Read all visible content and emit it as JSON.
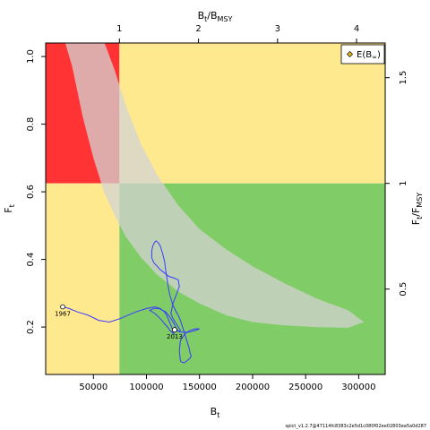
{
  "chart_data": {
    "type": "line",
    "x_axis": {
      "label": "B",
      "label_sub": "t",
      "range": [
        5000,
        325000
      ],
      "ticks": [
        50000,
        100000,
        150000,
        200000,
        250000,
        300000
      ],
      "tick_labels": [
        "50000",
        "100000",
        "150000",
        "200000",
        "250000",
        "300000"
      ]
    },
    "y_axis": {
      "label": "F",
      "label_sub": "t",
      "range": [
        0.06,
        1.04
      ],
      "ticks": [
        0.2,
        0.4,
        0.6,
        0.8,
        1.0
      ],
      "tick_labels": [
        "0.2",
        "0.4",
        "0.6",
        "0.8",
        "1.0"
      ]
    },
    "top_axis": {
      "label": "B",
      "label_sub": "t",
      "label_mid": "/B",
      "label_sub2": "MSY",
      "bmsy": 74500,
      "ticks": [
        1,
        2,
        3,
        4
      ],
      "tick_labels": [
        "1",
        "2",
        "3",
        "4"
      ]
    },
    "right_axis": {
      "label": "F",
      "label_sub": "t",
      "label_mid": "/F",
      "label_sub2": "MSY",
      "fmsy": 0.625,
      "ticks": [
        0.5,
        1,
        1.5
      ],
      "tick_labels": [
        "0.5",
        "1",
        "1.5"
      ]
    },
    "reference_points": {
      "bmsy": 74500,
      "fmsy": 0.625
    },
    "zones": [
      {
        "name": "overfished-overfishing",
        "color": "#ff3333"
      },
      {
        "name": "overfishing-or-overfished",
        "color": "#ffe98f"
      },
      {
        "name": "healthy",
        "color": "#80cc66"
      }
    ],
    "uncertainty_region": {
      "color": "#d3d3d3",
      "outer_x": [
        23500,
        30000,
        40000,
        50000,
        60000,
        70000,
        80000,
        95000,
        110000,
        130000,
        150000,
        175000,
        200000,
        230000,
        260000,
        290000,
        305000
      ],
      "outer_y": [
        1.04,
        0.97,
        0.82,
        0.7,
        0.6,
        0.53,
        0.47,
        0.405,
        0.355,
        0.305,
        0.27,
        0.235,
        0.215,
        0.205,
        0.2,
        0.198,
        0.215
      ],
      "inner_x": [
        60500,
        70000,
        80000,
        95000,
        110000,
        130000,
        150000,
        175000,
        200000,
        230000,
        260000,
        290000,
        305000
      ],
      "inner_y": [
        1.04,
        0.96,
        0.86,
        0.74,
        0.65,
        0.56,
        0.49,
        0.43,
        0.38,
        0.33,
        0.285,
        0.25,
        0.215
      ]
    },
    "series": [
      {
        "x": [
          21000,
          27000,
          35000,
          45000,
          55000,
          65000,
          75000,
          90000,
          100000,
          108000,
          113000,
          117000,
          119000,
          121000,
          123000,
          125000,
          126000,
          124000,
          122000,
          120000,
          117000,
          113000,
          108000,
          103000,
          107000,
          112000,
          118000,
          122000,
          126000,
          128000,
          131000,
          132000,
          130000,
          128000,
          125000,
          123000,
          125000,
          128000,
          131000,
          130000,
          126000,
          121000,
          117000,
          113000,
          110000,
          107000,
          105000,
          105000,
          106000,
          107500,
          109000,
          111000,
          113000,
          115000,
          117000,
          118000,
          119000,
          120000,
          121000,
          122000,
          123500,
          125000,
          126500,
          128000,
          130000,
          132000,
          134000,
          136000,
          138000,
          140000,
          141000,
          142000,
          141500,
          140000,
          138000,
          136000,
          134000,
          132000,
          131000,
          132000,
          136000,
          141000,
          146000,
          150000,
          146000,
          140000,
          133000,
          126500
        ],
        "y": [
          0.26,
          0.255,
          0.245,
          0.235,
          0.22,
          0.215,
          0.225,
          0.245,
          0.255,
          0.26,
          0.255,
          0.245,
          0.235,
          0.22,
          0.205,
          0.19,
          0.18,
          0.185,
          0.19,
          0.2,
          0.21,
          0.225,
          0.24,
          0.25,
          0.255,
          0.255,
          0.245,
          0.23,
          0.21,
          0.195,
          0.185,
          0.19,
          0.2,
          0.21,
          0.225,
          0.24,
          0.27,
          0.295,
          0.32,
          0.34,
          0.345,
          0.35,
          0.36,
          0.37,
          0.38,
          0.39,
          0.405,
          0.425,
          0.44,
          0.45,
          0.455,
          0.45,
          0.44,
          0.42,
          0.395,
          0.37,
          0.35,
          0.33,
          0.31,
          0.295,
          0.28,
          0.265,
          0.255,
          0.245,
          0.235,
          0.22,
          0.2,
          0.18,
          0.16,
          0.14,
          0.125,
          0.115,
          0.11,
          0.105,
          0.1,
          0.095,
          0.095,
          0.1,
          0.13,
          0.16,
          0.18,
          0.19,
          0.195,
          0.195,
          0.19,
          0.185,
          0.185,
          0.192
        ],
        "color": "#3a3aff"
      }
    ],
    "annotations": [
      {
        "text": "1967",
        "x": 21000,
        "y": 0.26
      },
      {
        "text": "2013",
        "x": 126500,
        "y": 0.192
      }
    ],
    "legend": {
      "position": "top-right",
      "text_main": "E(B",
      "text_sub": "∞",
      "text_end": ")"
    },
    "grid": false
  },
  "footer": {
    "text": "spict_v1.2.7@47114fc8383c2e5d1c080f02ee02803ea5a0d287"
  }
}
